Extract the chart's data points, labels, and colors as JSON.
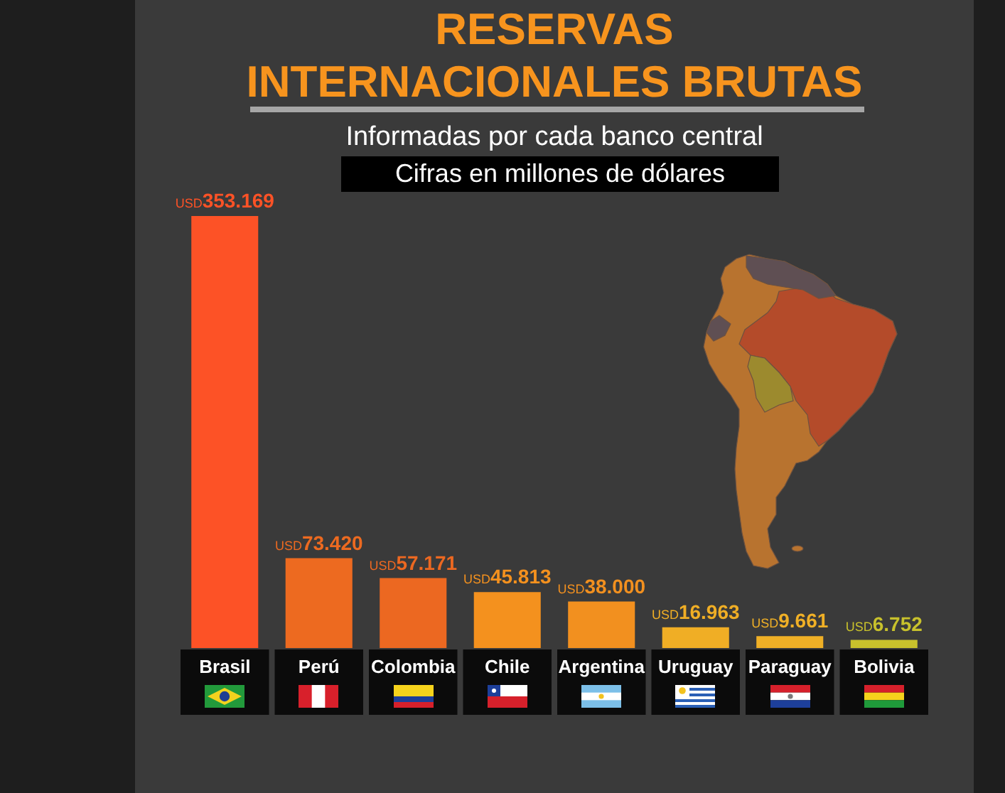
{
  "chart_data": {
    "type": "bar",
    "title": "RESERVAS INTERNACIONALES BRUTAS",
    "subtitle": "Informadas por cada banco central",
    "annotations": [
      "Cifras en millones de dólares"
    ],
    "categories": [
      "Brasil",
      "Perú",
      "Colombia",
      "Chile",
      "Argentina",
      "Uruguay",
      "Paraguay",
      "Bolivia"
    ],
    "values": [
      353169,
      73420,
      57171,
      45813,
      38000,
      16963,
      9661,
      6752
    ],
    "value_labels": [
      "USD353.169",
      "USD73.420",
      "USD57.171",
      "USD45.813",
      "USD38.000",
      "USD16.963",
      "USD9.661",
      "USD6.752"
    ],
    "colors": [
      "#fd5226",
      "#ed6a20",
      "#ec6821",
      "#f4911e",
      "#f2901f",
      "#f0ae25",
      "#f0b026",
      "#c8c12c"
    ]
  }
}
